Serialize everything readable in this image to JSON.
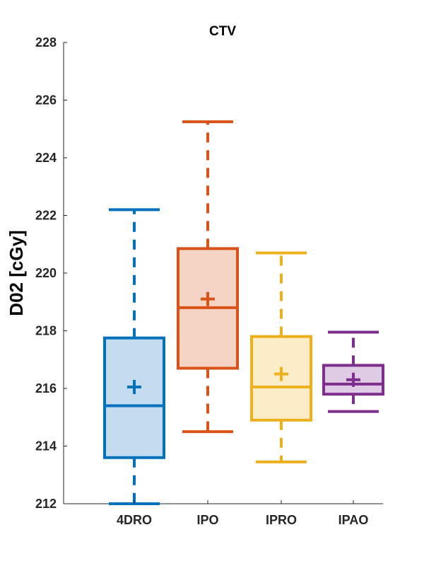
{
  "chart_data": {
    "type": "box",
    "title": "CTV",
    "xlabel": "",
    "ylabel": "D02 [cGy]",
    "ylim": [
      212,
      228
    ],
    "yticks": [
      212,
      214,
      216,
      218,
      220,
      222,
      224,
      226,
      228
    ],
    "grid": false,
    "categories": [
      "4DRO",
      "IPO",
      "IPRO",
      "IPAO"
    ],
    "colors": [
      "#0072BD",
      "#D95319",
      "#EDB120",
      "#7E2F8E"
    ],
    "fills": [
      "#C3DCEF",
      "#F5D4C6",
      "#FBEDC7",
      "#DFCBE3"
    ],
    "boxes": [
      {
        "name": "4DRO",
        "whisker_low": 212.0,
        "q1": 213.6,
        "median": 215.4,
        "q3": 217.75,
        "whisker_high": 222.2,
        "mean": 216.05
      },
      {
        "name": "IPO",
        "whisker_low": 214.5,
        "q1": 216.7,
        "median": 218.8,
        "q3": 220.85,
        "whisker_high": 225.25,
        "mean": 219.1
      },
      {
        "name": "IPRO",
        "whisker_low": 213.45,
        "q1": 214.9,
        "median": 216.05,
        "q3": 217.8,
        "whisker_high": 220.7,
        "mean": 216.5
      },
      {
        "name": "IPAO",
        "whisker_low": 215.2,
        "q1": 215.8,
        "median": 216.15,
        "q3": 216.8,
        "whisker_high": 217.95,
        "mean": 216.3
      }
    ]
  }
}
